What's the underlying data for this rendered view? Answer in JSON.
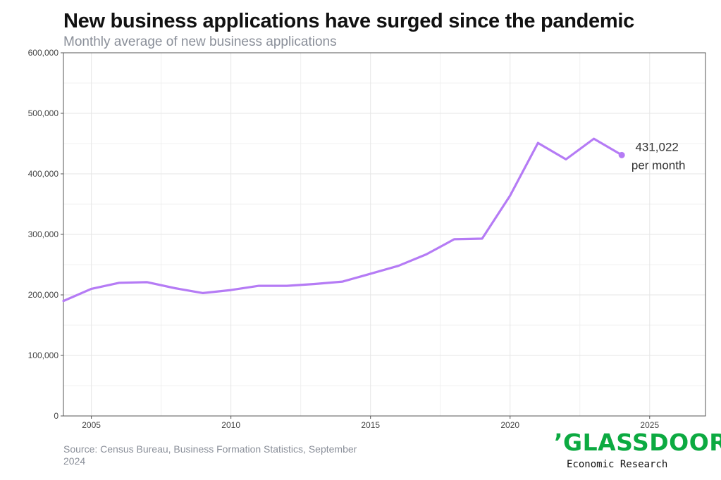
{
  "title": "New business applications have surged since the pandemic",
  "subtitle": "Monthly average of new business applications",
  "source": "Source: Census Bureau, Business Formation Statistics, September 2024",
  "logo": {
    "mark": "’GLASSDOOR",
    "tagline": "Economic Research"
  },
  "colors": {
    "line": "#b57bf5",
    "grid": "#e6e6e6",
    "text": "#333333",
    "muted": "#8a8f99",
    "brand": "#0caa41"
  },
  "chart_data": {
    "type": "line",
    "title": "New business applications have surged since the pandemic",
    "subtitle": "Monthly average of new business applications",
    "xlabel": "",
    "ylabel": "",
    "xlim": [
      2004,
      2027
    ],
    "ylim": [
      0,
      600000
    ],
    "xticks": [
      2005,
      2010,
      2015,
      2020,
      2025
    ],
    "yticks": [
      0,
      100000,
      200000,
      300000,
      400000,
      500000,
      600000
    ],
    "xtick_labels": [
      "2005",
      "2010",
      "2015",
      "2020",
      "2025"
    ],
    "ytick_labels": [
      "0",
      "100,000",
      "200,000",
      "300,000",
      "400,000",
      "500,000",
      "600,000"
    ],
    "grid": true,
    "legend": "none",
    "x": [
      2004,
      2005,
      2006,
      2007,
      2008,
      2009,
      2010,
      2011,
      2012,
      2013,
      2014,
      2015,
      2016,
      2017,
      2018,
      2019,
      2020,
      2021,
      2022,
      2023,
      2024
    ],
    "y": [
      190000,
      210000,
      220000,
      221000,
      211000,
      203000,
      208000,
      215000,
      215000,
      218000,
      222000,
      235000,
      248000,
      267000,
      292000,
      293000,
      364000,
      451000,
      424000,
      458000,
      431022
    ],
    "annotation": {
      "x": 2024,
      "y": 431022,
      "value_label": "431,022",
      "unit_label": "per month"
    }
  }
}
